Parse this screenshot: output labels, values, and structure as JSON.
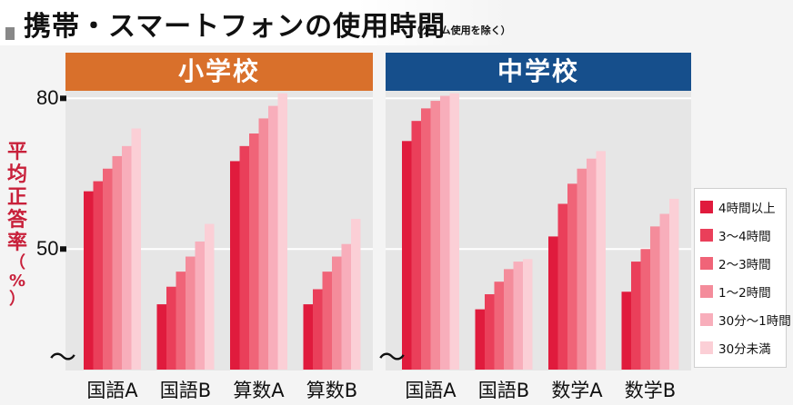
{
  "title": "携帯・スマートフォンの使用時間",
  "subtitle": "（ゲーム使用を除く）",
  "colors": {
    "elementary_header": "#d9702b",
    "junior_header": "#164f8c",
    "ylabel": "#c8203a",
    "series": [
      "#e01b3d",
      "#ea3f5a",
      "#f06478",
      "#f48c9b",
      "#f8aebb",
      "#fbcfd6"
    ]
  },
  "legend_position": "right",
  "chart_data": {
    "type": "bar",
    "ylabel": "平均正答率（%）",
    "yticks": [
      50,
      80
    ],
    "ylim": [
      26,
      81.5
    ],
    "axis_break": "〜",
    "legend": [
      "4時間以上",
      "3〜4時間",
      "2〜3時間",
      "1〜2時間",
      "30分〜1時間",
      "30分未満"
    ],
    "panels": [
      {
        "name": "小学校",
        "categories": [
          "国語A",
          "国語B",
          "算数A",
          "算数B"
        ],
        "series": [
          {
            "name": "4時間以上",
            "values": [
              61.5,
              39,
              67.5,
              39
            ]
          },
          {
            "name": "3〜4時間",
            "values": [
              63.5,
              42.5,
              70.5,
              42
            ]
          },
          {
            "name": "2〜3時間",
            "values": [
              66,
              45.5,
              73,
              45.5
            ]
          },
          {
            "name": "1〜2時間",
            "values": [
              68.5,
              48.5,
              76,
              48.5
            ]
          },
          {
            "name": "30分〜1時間",
            "values": [
              70.5,
              51.5,
              78.5,
              51
            ]
          },
          {
            "name": "30分未満",
            "values": [
              74,
              55,
              81,
              56
            ]
          }
        ]
      },
      {
        "name": "中学校",
        "categories": [
          "国語A",
          "国語B",
          "数学A",
          "数学B"
        ],
        "series": [
          {
            "name": "4時間以上",
            "values": [
              71.5,
              38,
              52.5,
              41.5
            ]
          },
          {
            "name": "3〜4時間",
            "values": [
              75.5,
              41,
              59,
              47.5
            ]
          },
          {
            "name": "2〜3時間",
            "values": [
              78,
              43.5,
              63,
              50
            ]
          },
          {
            "name": "1〜2時間",
            "values": [
              79.5,
              46,
              66,
              54.5
            ]
          },
          {
            "name": "30分〜1時間",
            "values": [
              80.5,
              47.5,
              68,
              57
            ]
          },
          {
            "name": "30分未満",
            "values": [
              81,
              48,
              69.5,
              60
            ]
          }
        ]
      }
    ]
  }
}
